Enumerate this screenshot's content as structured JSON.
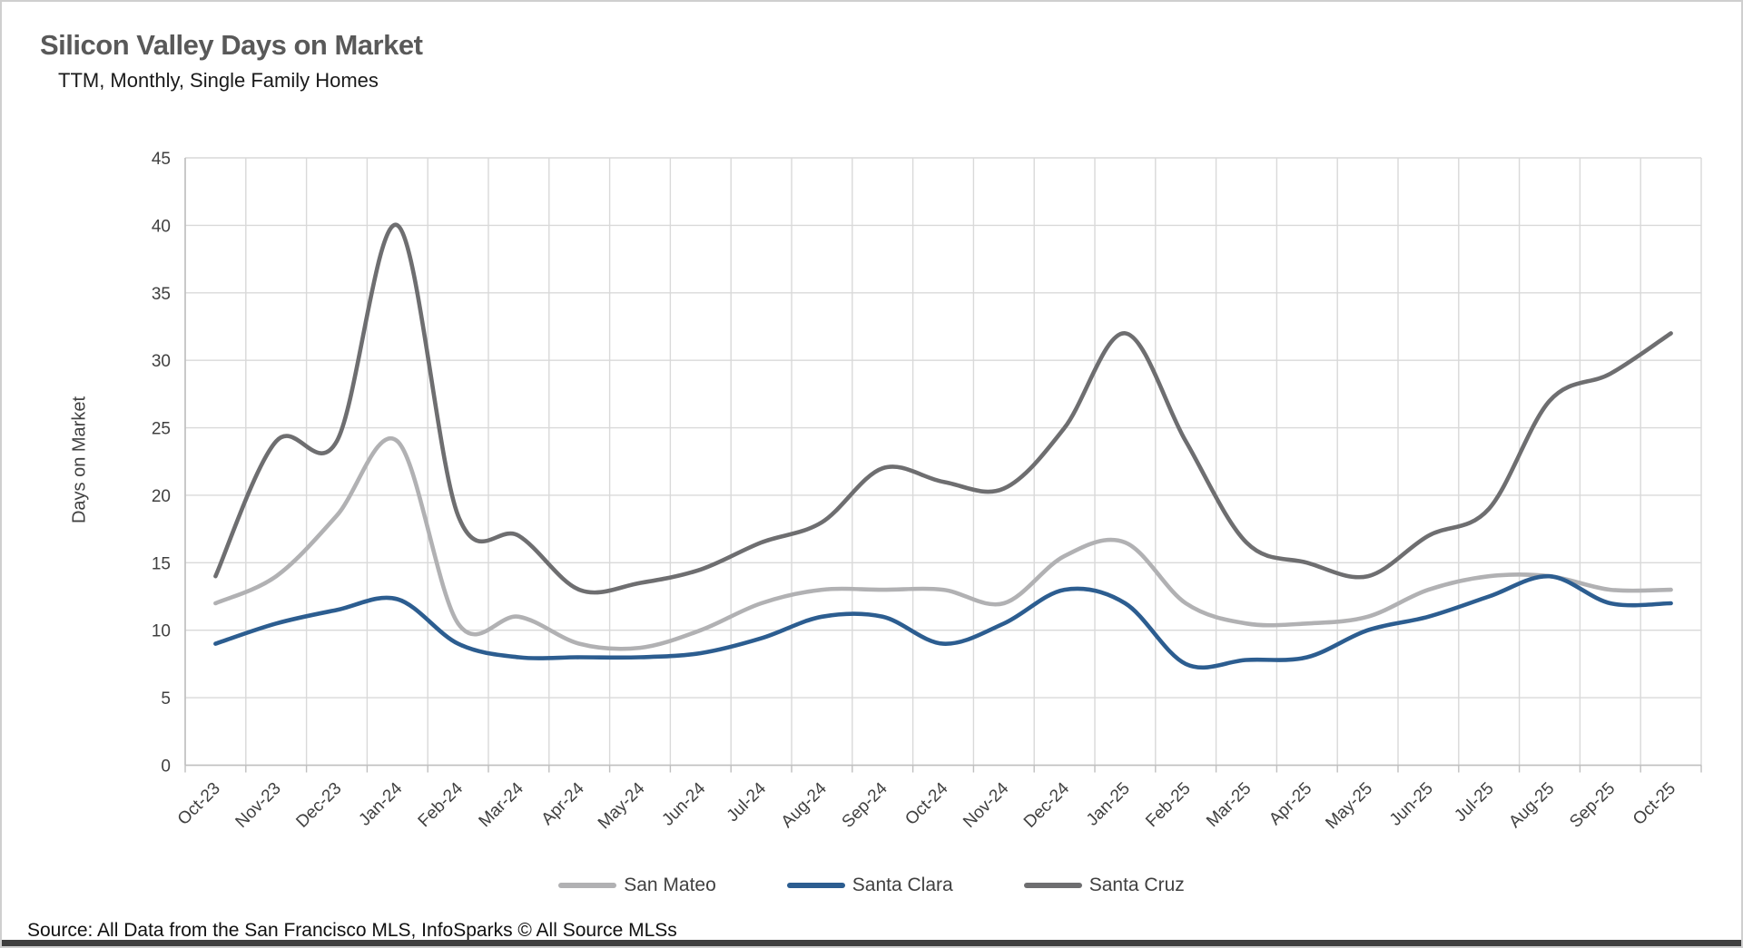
{
  "header": {
    "title": "Silicon Valley Days on Market",
    "subtitle": "TTM, Monthly, Single Family Homes"
  },
  "source_note": "Source: All Data from the San Francisco MLS, InfoSparks © All Source MLSs",
  "colors": {
    "background": "#FFFFFF",
    "border": "#CFCFCF",
    "gridline": "#D9D9D9",
    "axis_line": "#BFBFBF",
    "title_text": "#595959",
    "subtitle_text": "#1A1A1A",
    "tick_text": "#404040",
    "bottom_bar": "#3F3F3F"
  },
  "chart_data": {
    "type": "line",
    "smooth": true,
    "title": "Silicon Valley Days on Market",
    "subtitle": "TTM, Monthly, Single Family Homes",
    "xlabel": "",
    "ylabel": "Days on Market",
    "ylim": [
      0,
      45
    ],
    "yticks": [
      0,
      5,
      10,
      15,
      20,
      25,
      30,
      35,
      40,
      45
    ],
    "grid": true,
    "legend_position": "bottom",
    "categories": [
      "Oct-23",
      "Nov-23",
      "Dec-23",
      "Jan-24",
      "Feb-24",
      "Mar-24",
      "Apr-24",
      "May-24",
      "Jun-24",
      "Jul-24",
      "Aug-24",
      "Sep-24",
      "Oct-24",
      "Nov-24",
      "Dec-24",
      "Jan-25",
      "Feb-25",
      "Mar-25",
      "Apr-25",
      "May-25",
      "Jun-25",
      "Jul-25",
      "Aug-25",
      "Sep-25",
      "Oct-25"
    ],
    "series": [
      {
        "name": "San Mateo",
        "color": "#B1B1B3",
        "values": [
          12,
          14,
          18.5,
          24,
          10.5,
          11,
          9,
          8.7,
          10,
          12,
          13,
          13,
          13,
          12,
          15.5,
          16.5,
          12,
          10.5,
          10.5,
          11,
          13,
          14,
          14,
          13,
          13
        ]
      },
      {
        "name": "Santa Clara",
        "color": "#2C5D90",
        "values": [
          9,
          10.5,
          11.5,
          12.3,
          9,
          8,
          8,
          8,
          8.3,
          9.4,
          11,
          11,
          9,
          10.5,
          13,
          12,
          7.5,
          7.8,
          8,
          10,
          11,
          12.5,
          14,
          12,
          12
        ]
      },
      {
        "name": "Santa Cruz",
        "color": "#6E6E70",
        "values": [
          14,
          24,
          24,
          40,
          18.5,
          17,
          13,
          13.5,
          14.5,
          16.5,
          18,
          22,
          21,
          20.5,
          25,
          32,
          24,
          16.5,
          15,
          14,
          17,
          19,
          27,
          29,
          32
        ]
      }
    ]
  }
}
